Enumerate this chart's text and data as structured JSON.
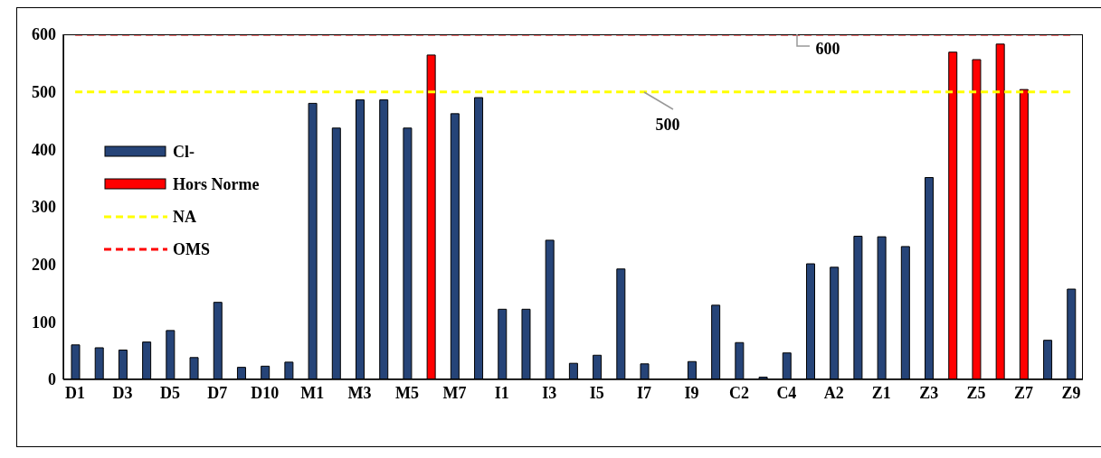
{
  "chart_data": {
    "type": "bar",
    "categories": [
      "D1",
      null,
      "D3",
      null,
      "D5",
      null,
      "D7",
      null,
      "D10",
      null,
      "M1",
      null,
      "M3",
      null,
      "M5",
      null,
      "M7",
      null,
      "I1",
      null,
      "I3",
      null,
      "I5",
      null,
      "I7",
      null,
      "I9",
      null,
      "C2",
      null,
      "C4",
      null,
      "A2",
      null,
      "Z1",
      null,
      "Z3",
      null,
      "Z5",
      null,
      "Z7",
      null,
      "Z9"
    ],
    "series": [
      {
        "name": "Cl-",
        "color": "#264478",
        "values": [
          60,
          55,
          51,
          65,
          85,
          38,
          134,
          21,
          23,
          30,
          480,
          437,
          486,
          486,
          437,
          null,
          462,
          490,
          122,
          122,
          242,
          28,
          42,
          192,
          27,
          null,
          31,
          129,
          64,
          4,
          46,
          201,
          195,
          249,
          248,
          231,
          351,
          null,
          null,
          null,
          null,
          68,
          157
        ]
      },
      {
        "name": "Hors Norme",
        "color": "#ff0000",
        "values": [
          null,
          null,
          null,
          null,
          null,
          null,
          null,
          null,
          null,
          null,
          null,
          null,
          null,
          null,
          null,
          564,
          null,
          null,
          null,
          null,
          null,
          null,
          null,
          null,
          null,
          null,
          null,
          null,
          null,
          null,
          null,
          null,
          null,
          null,
          null,
          null,
          null,
          569,
          556,
          583,
          504,
          null,
          null
        ]
      },
      {
        "name": "NA",
        "type": "line",
        "color": "#ffff00",
        "line_style": "dashed",
        "values": [
          500,
          500,
          500,
          500,
          500,
          500,
          500,
          500,
          500,
          500,
          500,
          500,
          500,
          500,
          500,
          500,
          500,
          500,
          500,
          500,
          500,
          500,
          500,
          500,
          500,
          500,
          500,
          500,
          500,
          500,
          500,
          500,
          500,
          500,
          500,
          500,
          500,
          500,
          500,
          500,
          500,
          500,
          500
        ]
      },
      {
        "name": "OMS",
        "type": "line",
        "color": "#ff0000",
        "line_style": "dashed",
        "values": [
          600,
          600,
          600,
          600,
          600,
          600,
          600,
          600,
          600,
          600,
          600,
          600,
          600,
          600,
          600,
          600,
          600,
          600,
          600,
          600,
          600,
          600,
          600,
          600,
          600,
          600,
          600,
          600,
          600,
          600,
          600,
          600,
          600,
          600,
          600,
          600,
          600,
          600,
          600,
          600,
          600,
          600,
          600
        ]
      }
    ],
    "stacked": true,
    "ylim": [
      0,
      600
    ],
    "yticks": [
      0,
      100,
      200,
      300,
      400,
      500,
      600
    ],
    "legend": "left",
    "marker": "none",
    "annotations": [
      {
        "text": "500",
        "y": 500
      },
      {
        "text": "600",
        "y": 600
      }
    ]
  }
}
